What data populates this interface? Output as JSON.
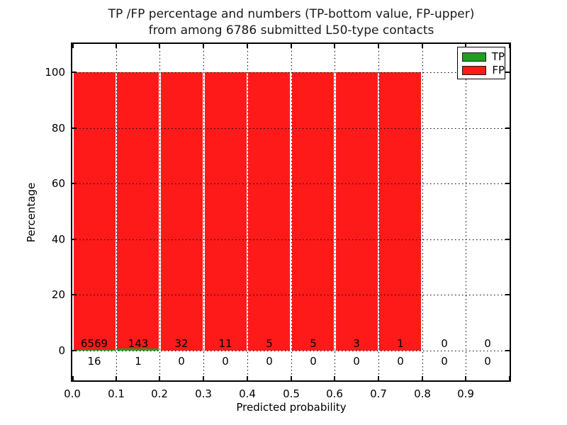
{
  "chart_data": {
    "type": "bar",
    "stacked": true,
    "title_line1": "TP /FP percentage and numbers (TP-bottom value, FP-upper)",
    "title_line2": "from among 6786 submitted L50-type contacts",
    "xlabel": "Predicted probability",
    "ylabel": "Percentage",
    "total_submitted_contacts": 6786,
    "xlim": [
      0.0,
      1.0
    ],
    "ylim": [
      -11,
      110
    ],
    "bin_width": 0.1,
    "bin_starts": [
      0.0,
      0.1,
      0.2,
      0.3,
      0.4,
      0.5,
      0.6,
      0.7,
      0.8,
      0.9
    ],
    "xtick_labels": [
      "0.0",
      "0.1",
      "0.2",
      "0.3",
      "0.4",
      "0.5",
      "0.6",
      "0.7",
      "0.8",
      "0.9"
    ],
    "ytick_labels": [
      "0",
      "20",
      "40",
      "60",
      "80",
      "100"
    ],
    "ytick_values": [
      0,
      20,
      40,
      60,
      80,
      100
    ],
    "grid": {
      "visible": true,
      "linestyle": "dotted",
      "color": "#000000"
    },
    "colors": {
      "tp": "#1f9e1f",
      "fp": "#ff1a1a",
      "axes": "#000000",
      "background": "#ffffff"
    },
    "legend": {
      "position": "upper-right",
      "entries": [
        {
          "label": "TP",
          "color": "#1f9e1f"
        },
        {
          "label": "FP",
          "color": "#ff1a1a"
        }
      ]
    },
    "series": [
      {
        "name": "TP",
        "color": "#1f9e1f",
        "counts": [
          16,
          1,
          0,
          0,
          0,
          0,
          0,
          0,
          0,
          0
        ],
        "percent": [
          0.24,
          0.69,
          0,
          0,
          0,
          0,
          0,
          0,
          0,
          0
        ]
      },
      {
        "name": "FP",
        "color": "#ff1a1a",
        "counts": [
          6569,
          143,
          32,
          11,
          5,
          5,
          3,
          1,
          0,
          0
        ],
        "percent": [
          99.76,
          99.31,
          100,
          100,
          100,
          100,
          100,
          100,
          0,
          0
        ]
      }
    ]
  }
}
